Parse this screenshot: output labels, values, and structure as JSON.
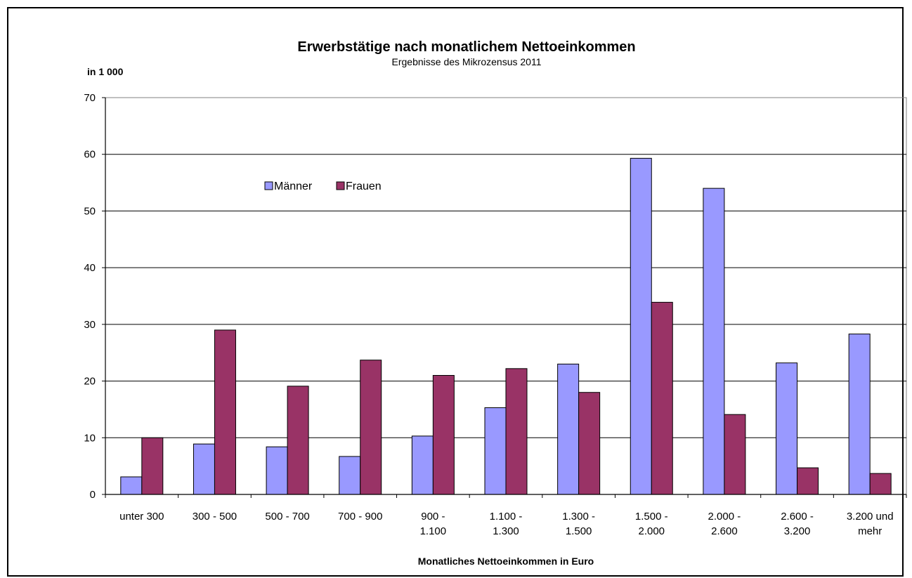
{
  "chart_data": {
    "type": "bar",
    "title": "Erwerbstätige nach monatlichem Nettoeinkommen",
    "subtitle": "Ergebnisse des Mikrozensus 2011",
    "unit_label": "in 1 000",
    "xlabel": "Monatliches Nettoeinkommen in Euro",
    "ylabel": "",
    "ylim": [
      0,
      70
    ],
    "yticks": [
      0,
      10,
      20,
      30,
      40,
      50,
      60,
      70
    ],
    "grid": true,
    "legend_position": "top-left",
    "categories": [
      [
        "unter 300"
      ],
      [
        "300 - 500"
      ],
      [
        "500 - 700"
      ],
      [
        "700 - 900"
      ],
      [
        "900 -",
        "1.100"
      ],
      [
        "1.100 -",
        "1.300"
      ],
      [
        "1.300 -",
        "1.500"
      ],
      [
        "1.500 -",
        "2.000"
      ],
      [
        "2.000 -",
        "2.600"
      ],
      [
        "2.600 -",
        "3.200"
      ],
      [
        "3.200 und",
        "mehr"
      ]
    ],
    "series": [
      {
        "name": "Männer",
        "color": "#9999ff",
        "values": [
          3.1,
          8.9,
          8.4,
          6.7,
          10.3,
          15.3,
          23.0,
          59.3,
          54.0,
          23.2,
          28.3
        ]
      },
      {
        "name": "Frauen",
        "color": "#993366",
        "values": [
          10.0,
          29.0,
          19.1,
          23.7,
          21.0,
          22.2,
          18.0,
          33.9,
          14.1,
          4.7,
          3.7
        ]
      }
    ]
  }
}
